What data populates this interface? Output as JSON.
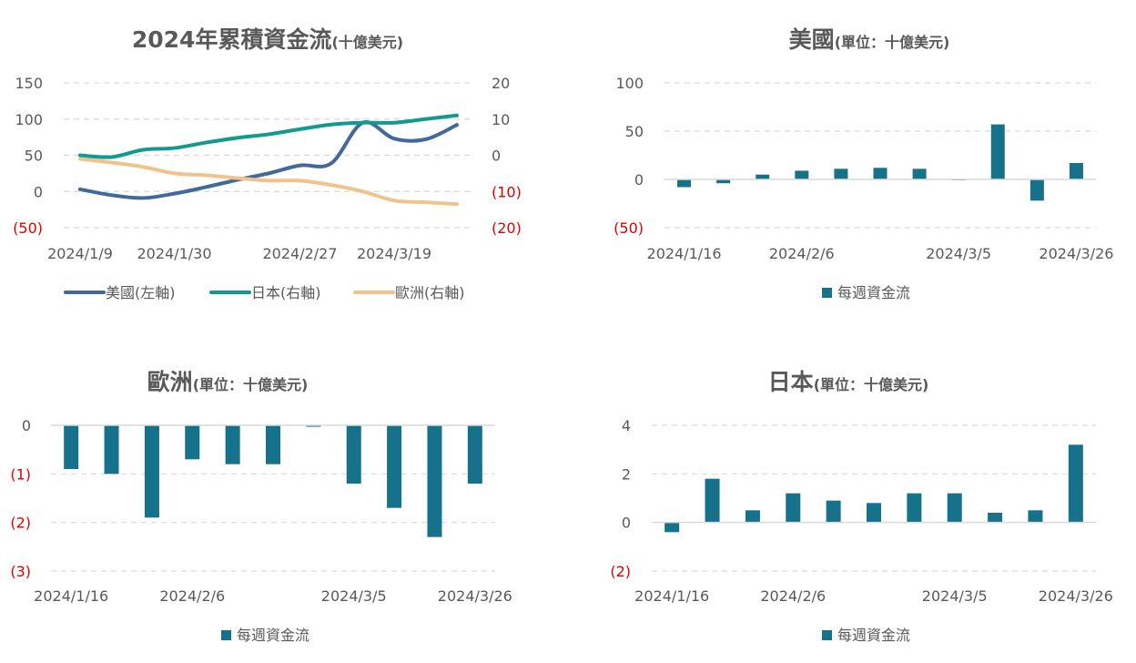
{
  "colors": {
    "us": "#41699a",
    "jp": "#129a8e",
    "eu": "#f0c38c",
    "bar": "#15728a",
    "neg": "#e00000",
    "grid": "#d9d9d9",
    "text": "#595959"
  },
  "chart_data": [
    {
      "id": "cumulative",
      "type": "line",
      "title": "2024年累積資金流",
      "title_unit": "(十億美元)",
      "x_tick_labels": [
        "2024/1/9",
        "2024/1/30",
        "2024/2/27",
        "2024/3/19"
      ],
      "y_left": {
        "ticks": [
          150,
          100,
          50,
          0,
          -50
        ],
        "tick_labels": [
          "150",
          "100",
          "50",
          "0",
          "(50)"
        ],
        "ylim": [
          -50,
          150
        ]
      },
      "y_right": {
        "ticks": [
          20,
          10,
          0,
          -10,
          -20
        ],
        "tick_labels": [
          "20",
          "10",
          "0",
          "(10)",
          "(20)"
        ],
        "ylim": [
          -20,
          20
        ]
      },
      "x": [
        "2024/1/9",
        "2024/1/16",
        "2024/1/23",
        "2024/1/30",
        "2024/2/6",
        "2024/2/13",
        "2024/2/20",
        "2024/2/27",
        "2024/3/5",
        "2024/3/12",
        "2024/3/19",
        "2024/3/26",
        "2024/4/2"
      ],
      "series": [
        {
          "name": "美國(左軸)",
          "axis": "left",
          "color_key": "us",
          "values": [
            3,
            -5,
            -9,
            -3,
            6,
            16,
            25,
            36,
            39,
            95,
            73,
            72,
            92
          ]
        },
        {
          "name": "日本(右軸)",
          "axis": "right",
          "color_key": "jp",
          "values": [
            0,
            -0.5,
            1.5,
            2,
            3.5,
            4.8,
            5.8,
            7.2,
            8.5,
            9,
            9,
            10,
            11
          ]
        },
        {
          "name": "歐洲(右軸)",
          "axis": "right",
          "color_key": "eu",
          "values": [
            -1,
            -2,
            -3.2,
            -5,
            -5.5,
            -6.3,
            -7,
            -7,
            -8.2,
            -10,
            -12.5,
            -13,
            -13.5
          ]
        }
      ],
      "legend": "bottom"
    },
    {
      "id": "us",
      "type": "bar",
      "title": "美國",
      "title_unit": "(單位：十億美元)",
      "categories": [
        "2024/1/16",
        "2024/1/23",
        "2024/1/30",
        "2024/2/6",
        "2024/2/13",
        "2024/2/20",
        "2024/2/27",
        "2024/3/5",
        "2024/3/12",
        "2024/3/19",
        "2024/3/26"
      ],
      "x_tick_labels": [
        "2024/1/16",
        "2024/2/6",
        "2024/3/5",
        "2024/3/26"
      ],
      "values": [
        -8,
        -4,
        5,
        9,
        11,
        12,
        11,
        0,
        57,
        -22,
        17
      ],
      "ylim": [
        -50,
        100
      ],
      "ticks": [
        100,
        50,
        0,
        -50
      ],
      "tick_labels": [
        "100",
        "50",
        "0",
        "(50)"
      ],
      "legend_label": "每週資金流"
    },
    {
      "id": "eu",
      "type": "bar",
      "title": "歐洲",
      "title_unit": "(單位：十億美元)",
      "categories": [
        "2024/1/16",
        "2024/1/23",
        "2024/1/30",
        "2024/2/6",
        "2024/2/13",
        "2024/2/20",
        "2024/2/27",
        "2024/3/5",
        "2024/3/12",
        "2024/3/19",
        "2024/3/26"
      ],
      "x_tick_labels": [
        "2024/1/16",
        "2024/2/6",
        "2024/3/5",
        "2024/3/26"
      ],
      "values": [
        -0.9,
        -1.0,
        -1.9,
        -0.7,
        -0.8,
        -0.8,
        -0.03,
        -1.2,
        -1.7,
        -2.3,
        -1.2
      ],
      "ylim": [
        -3,
        0
      ],
      "ticks": [
        0,
        -1,
        -2,
        -3
      ],
      "tick_labels": [
        "0",
        "(1)",
        "(2)",
        "(3)"
      ],
      "legend_label": "每週資金流"
    },
    {
      "id": "jp",
      "type": "bar",
      "title": "日本",
      "title_unit": "(單位：十億美元)",
      "categories": [
        "2024/1/16",
        "2024/1/23",
        "2024/1/30",
        "2024/2/6",
        "2024/2/13",
        "2024/2/20",
        "2024/2/27",
        "2024/3/5",
        "2024/3/12",
        "2024/3/19",
        "2024/3/26"
      ],
      "x_tick_labels": [
        "2024/1/16",
        "2024/2/6",
        "2024/3/5",
        "2024/3/26"
      ],
      "values": [
        -0.4,
        1.8,
        0.5,
        1.2,
        0.9,
        0.8,
        1.2,
        1.2,
        0.4,
        0.5,
        3.2
      ],
      "ylim": [
        -2,
        4
      ],
      "ticks": [
        4,
        2,
        0,
        -2
      ],
      "tick_labels": [
        "4",
        "2",
        "0",
        "(2)"
      ],
      "legend_label": "每週資金流"
    }
  ]
}
